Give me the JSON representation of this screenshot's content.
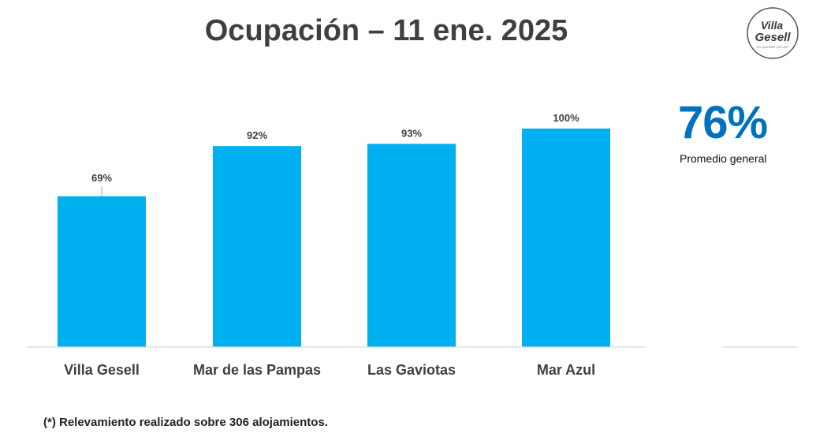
{
  "title": "Ocupación – 11 ene. 2025",
  "logo": {
    "line1": "Villa",
    "line2": "Gesell",
    "tagline": "ES QUERER VOLVER"
  },
  "summary": {
    "value": "76%",
    "label": "Promedio general",
    "color": "#0070c0"
  },
  "footnote": "(*) Relevamiento realizado sobre 306 alojamientos.",
  "chart_data": {
    "type": "bar",
    "categories": [
      "Villa Gesell",
      "Mar de las Pampas",
      "Las Gaviotas",
      "Mar Azul"
    ],
    "values": [
      69,
      92,
      93,
      100
    ],
    "data_labels": [
      "69%",
      "92%",
      "93%",
      "100%"
    ],
    "unit": "%",
    "ylim": [
      0,
      100
    ],
    "bar_color": "#00b0f0",
    "grid": false,
    "legend": "none"
  }
}
